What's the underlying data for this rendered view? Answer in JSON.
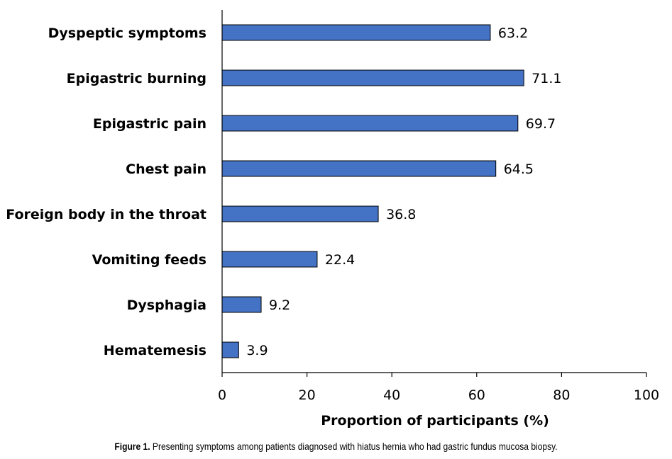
{
  "chart_data": {
    "type": "bar",
    "orientation": "horizontal",
    "categories": [
      "Dyspeptic symptoms",
      "Epigastric burning",
      "Epigastric pain",
      "Chest pain",
      "Foreign body in the throat",
      "Vomiting feeds",
      "Dysphagia",
      "Hematemesis"
    ],
    "values": [
      63.2,
      71.1,
      69.7,
      64.5,
      36.8,
      22.4,
      9.2,
      3.9
    ],
    "value_labels": [
      "63.2",
      "71.1",
      "69.7",
      "64.5",
      "36.8",
      "22.4",
      "9.2",
      "3.9"
    ],
    "xlabel": "Proportion of participants (%)",
    "ylabel": "",
    "xlim": [
      0,
      100
    ],
    "xticks": [
      0,
      20,
      40,
      60,
      80,
      100
    ],
    "grid": false,
    "legend": "none",
    "bar_color": "#4472C4",
    "bar_edge_color": "#000000"
  },
  "caption": {
    "prefix": "Figure 1.",
    "text": " Presenting symptoms among patients diagnosed with hiatus hernia who had gastric fundus mucosa biopsy."
  }
}
